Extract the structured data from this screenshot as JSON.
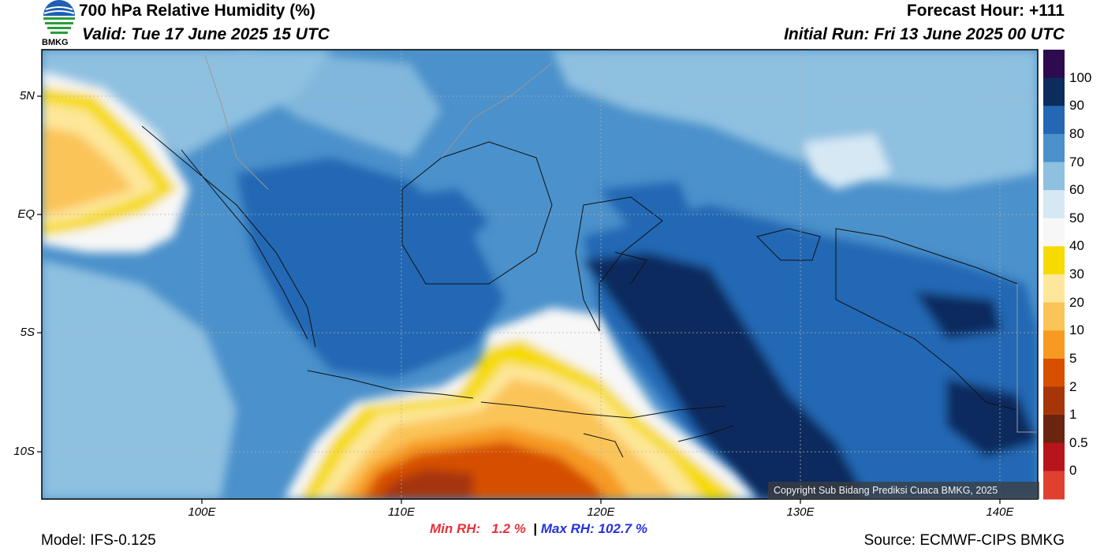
{
  "header": {
    "title": "700 hPa Relative Humidity (%)",
    "valid": "Valid: Tue 17 June 2025 15 UTC",
    "forecast_hour": "Forecast Hour: +111",
    "initial_run": "Initial Run: Fri 13 June 2025 00 UTC",
    "logo_text": "BMKG"
  },
  "map": {
    "lat_labels": [
      "5N",
      "EQ",
      "5S",
      "10S"
    ],
    "lon_labels": [
      "100E",
      "110E",
      "120E",
      "130E",
      "140E"
    ],
    "copyright": "Copyright Sub Bidang Prediksi Cuaca BMKG, 2025"
  },
  "colorbar": {
    "labels": [
      "100",
      "90",
      "80",
      "70",
      "60",
      "50",
      "40",
      "30",
      "20",
      "10",
      "5",
      "2",
      "1",
      "0.5",
      "0"
    ],
    "colors": [
      "#2e0a4e",
      "#0c2c5e",
      "#2468b4",
      "#4b91cb",
      "#8ec0e0",
      "#d6e8f4",
      "#f7f7f7",
      "#f6da00",
      "#fde79a",
      "#fbc458",
      "#f79a22",
      "#d65000",
      "#a6360a",
      "#6b2410",
      "#b8141c",
      "#e04030"
    ]
  },
  "footer": {
    "model": "Model: IFS-0.125",
    "source": "Source: ECMWF-CIPS BMKG",
    "min_label": "Min RH:",
    "min_value": "1.2 %",
    "separator": "|",
    "max_label": "Max RH:",
    "max_value": "102.7 %"
  }
}
